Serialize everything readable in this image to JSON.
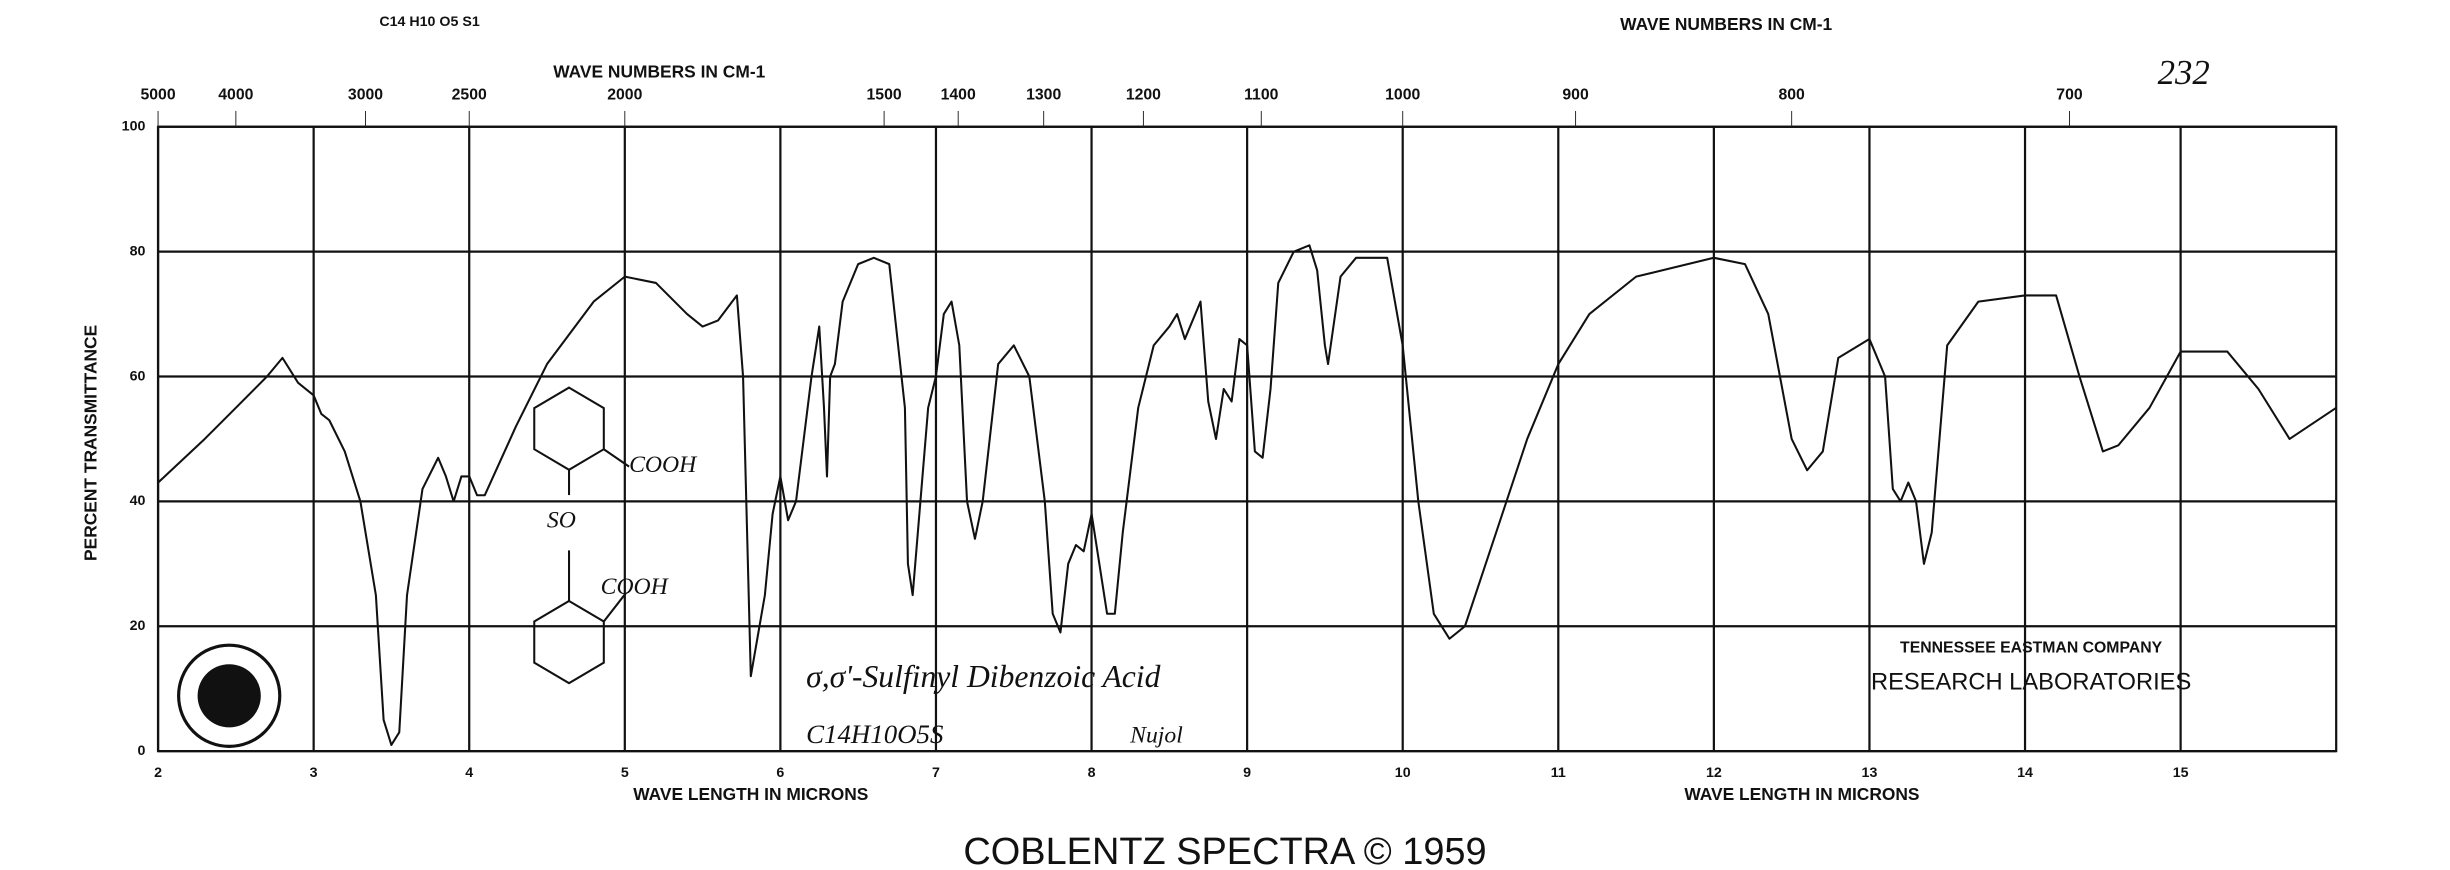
{
  "chart_data": {
    "type": "line",
    "x": [
      2.0,
      2.3,
      2.5,
      2.7,
      2.8,
      2.9,
      3.0,
      3.05,
      3.1,
      3.2,
      3.3,
      3.4,
      3.45,
      3.5,
      3.55,
      3.6,
      3.7,
      3.8,
      3.85,
      3.9,
      3.95,
      4.0,
      4.05,
      4.1,
      4.3,
      4.5,
      4.8,
      5.0,
      5.2,
      5.4,
      5.5,
      5.6,
      5.72,
      5.76,
      5.81,
      5.9,
      5.95,
      6.0,
      6.05,
      6.1,
      6.2,
      6.25,
      6.28,
      6.3,
      6.32,
      6.35,
      6.4,
      6.5,
      6.6,
      6.7,
      6.8,
      6.82,
      6.85,
      6.9,
      6.95,
      7.0,
      7.05,
      7.1,
      7.15,
      7.2,
      7.25,
      7.3,
      7.4,
      7.5,
      7.6,
      7.7,
      7.75,
      7.8,
      7.85,
      7.9,
      7.95,
      8.0,
      8.05,
      8.1,
      8.15,
      8.2,
      8.3,
      8.4,
      8.5,
      8.55,
      8.6,
      8.7,
      8.75,
      8.8,
      8.85,
      8.9,
      8.95,
      9.0,
      9.05,
      9.1,
      9.15,
      9.2,
      9.3,
      9.4,
      9.45,
      9.5,
      9.52,
      9.6,
      9.7,
      9.9,
      10.0,
      10.1,
      10.2,
      10.3,
      10.4,
      10.6,
      10.8,
      11.0,
      11.2,
      11.5,
      12.0,
      12.2,
      12.35,
      12.5,
      12.6,
      12.7,
      12.8,
      13.0,
      13.1,
      13.15,
      13.2,
      13.25,
      13.3,
      13.35,
      13.4,
      13.5,
      13.7,
      14.0,
      14.2,
      14.35,
      14.5,
      14.6,
      14.8,
      15.0,
      15.3,
      15.5,
      15.7,
      16.0
    ],
    "series": [
      {
        "name": "Transmittance",
        "color": "#111111",
        "values": [
          43,
          50,
          55,
          60,
          63,
          59,
          57,
          54,
          53,
          48,
          40,
          25,
          5,
          1,
          3,
          25,
          42,
          47,
          44,
          40,
          44,
          44,
          41,
          41,
          52,
          62,
          72,
          76,
          75,
          70,
          68,
          69,
          73,
          60,
          12,
          25,
          38,
          44,
          37,
          40,
          60,
          68,
          55,
          44,
          60,
          62,
          72,
          78,
          79,
          78,
          55,
          30,
          25,
          40,
          55,
          60,
          70,
          72,
          65,
          40,
          34,
          40,
          62,
          65,
          60,
          40,
          22,
          19,
          30,
          33,
          32,
          38,
          30,
          22,
          22,
          35,
          55,
          65,
          68,
          70,
          66,
          72,
          56,
          50,
          58,
          56,
          66,
          65,
          48,
          47,
          58,
          75,
          80,
          81,
          77,
          65,
          62,
          76,
          79,
          79,
          65,
          40,
          22,
          18,
          20,
          35,
          50,
          62,
          70,
          76,
          79,
          78,
          70,
          50,
          45,
          48,
          63,
          66,
          60,
          42,
          40,
          43,
          40,
          30,
          35,
          65,
          72,
          73,
          73,
          60,
          48,
          49,
          55,
          64,
          64,
          58,
          50,
          55
        ]
      }
    ],
    "xlim": [
      2,
      16
    ],
    "ylim": [
      0,
      100
    ],
    "xticks": [
      2,
      3,
      4,
      5,
      6,
      7,
      8,
      9,
      10,
      11,
      12,
      13,
      14,
      15
    ],
    "yticks": [
      0,
      20,
      40,
      60,
      80,
      100
    ],
    "x2ticks": [
      5000,
      4000,
      3000,
      2500,
      2000,
      1500,
      1400,
      1300,
      1200,
      1100,
      1000,
      900,
      800,
      700
    ],
    "grid": true,
    "top_axis_labels": [
      "WAVE NUMBERS IN CM-1",
      "WAVE NUMBERS IN CM-1"
    ],
    "x_axis_labels": [
      "WAVE LENGTH IN MICRONS",
      "WAVE LENGTH IN MICRONS"
    ],
    "y_axis_label": "PERCENT TRANSMITTANCE",
    "formula_top": "C14 H10 O5 S1",
    "sheet_number": "232",
    "compound": "σ,σ'-Sulfinyl Dibenzoic Acid",
    "formula": "C14H10O5S",
    "medium": "Nujol",
    "structure_labels": [
      "COOH",
      "SO",
      "COOH"
    ],
    "company": "TENNESSEE EASTMAN COMPANY",
    "laboratory": "RESEARCH LABORATORIES",
    "footer": "COBLENTZ SPECTRA © 1959"
  }
}
